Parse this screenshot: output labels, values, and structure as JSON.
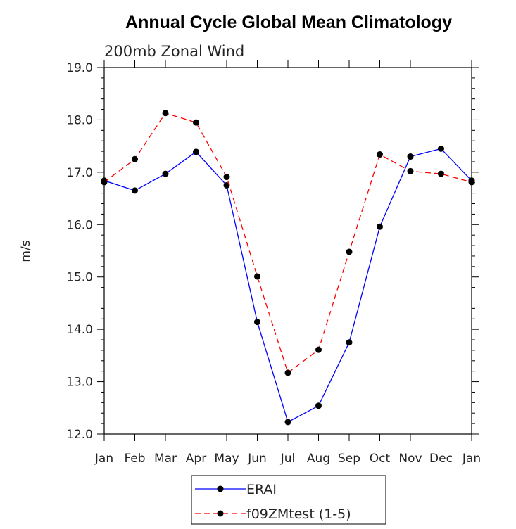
{
  "chart_data": {
    "type": "line",
    "title": "Annual Cycle Global Mean Climatology",
    "subtitle": "200mb Zonal Wind",
    "xlabel": "",
    "ylabel": "m/s",
    "categories": [
      "Jan",
      "Feb",
      "Mar",
      "Apr",
      "May",
      "Jun",
      "Jul",
      "Aug",
      "Sep",
      "Oct",
      "Nov",
      "Dec",
      "Jan"
    ],
    "ylim": [
      12.0,
      19.0
    ],
    "yticks": [
      "12.0",
      "13.0",
      "14.0",
      "15.0",
      "16.0",
      "17.0",
      "18.0",
      "19.0"
    ],
    "grid": false,
    "legend_position": "bottom",
    "series": [
      {
        "name": "ERAI",
        "color": "#0000ff",
        "dash": "solid",
        "values": [
          16.84,
          16.65,
          16.97,
          17.39,
          16.75,
          14.14,
          12.23,
          12.54,
          13.75,
          15.96,
          17.3,
          17.45,
          16.84
        ]
      },
      {
        "name": "f09ZMtest (1-5)",
        "color": "#ff0000",
        "dash": "dashed",
        "values": [
          16.81,
          17.25,
          18.13,
          17.95,
          16.91,
          15.01,
          13.17,
          13.61,
          15.48,
          17.34,
          17.02,
          16.97,
          16.81
        ]
      }
    ]
  }
}
